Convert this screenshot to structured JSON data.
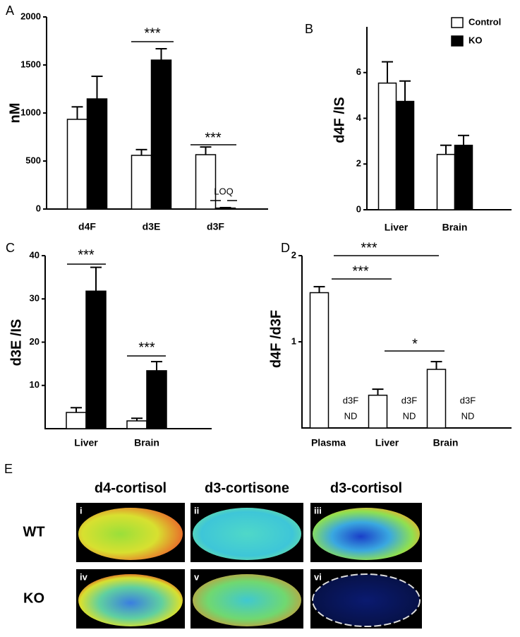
{
  "chart_data": [
    {
      "type": "bar",
      "panel_label": "A",
      "ylabel": "nM",
      "categories": [
        "d4F",
        "d3E",
        "d3F"
      ],
      "series": [
        {
          "color": "#ffffff",
          "values": [
            934,
            559,
            566
          ],
          "errors": [
            130,
            60,
            80
          ]
        },
        {
          "color": "#000000",
          "values": [
            1147,
            1551,
            10
          ],
          "errors": [
            235,
            118,
            5
          ]
        }
      ],
      "ylim": [
        0,
        2000
      ],
      "yticks": [
        0,
        500,
        1000,
        1500,
        2000
      ],
      "annotations": [
        "***",
        "***",
        "LOQ"
      ]
    },
    {
      "type": "bar",
      "panel_label": "B",
      "ylabel": "d4F /IS",
      "categories": [
        "Liver",
        "Brain"
      ],
      "series": [
        {
          "name": "Control",
          "color": "#ffffff",
          "values": [
            5.54,
            2.42
          ],
          "errors": [
            0.93,
            0.4
          ]
        },
        {
          "name": "KO",
          "color": "#000000",
          "values": [
            4.74,
            2.82
          ],
          "errors": [
            0.89,
            0.43
          ]
        }
      ],
      "ylim": [
        0,
        8
      ],
      "yticks": [
        0,
        2,
        4,
        6
      ],
      "legend": "upper right",
      "annotations": []
    },
    {
      "type": "bar",
      "panel_label": "C",
      "ylabel": "d3E /IS",
      "categories": [
        "Liver",
        "Brain"
      ],
      "series": [
        {
          "color": "#ffffff",
          "values": [
            3.75,
            1.8
          ],
          "errors": [
            1.1,
            0.6
          ]
        },
        {
          "color": "#000000",
          "values": [
            31.8,
            13.4
          ],
          "errors": [
            5.5,
            2.1
          ]
        }
      ],
      "ylim": [
        0,
        40
      ],
      "yticks": [
        10,
        20,
        30,
        40
      ],
      "annotations": [
        "***",
        "***"
      ]
    },
    {
      "type": "bar",
      "panel_label": "D",
      "ylabel": "d4F /d3F",
      "categories": [
        "Plasma",
        "Liver",
        "Brain"
      ],
      "series": [
        {
          "color": "#ffffff",
          "values": [
            1.57,
            0.38,
            0.68
          ],
          "errors": [
            0.07,
            0.07,
            0.09
          ]
        }
      ],
      "ylim": [
        0,
        2
      ],
      "yticks": [
        1,
        2
      ],
      "annotations": [
        "***",
        "***",
        "*",
        "d3F",
        "ND",
        "d3F",
        "ND",
        "d3F",
        "ND"
      ]
    }
  ],
  "panel_e": {
    "panel_label": "E",
    "columns": [
      "d4-cortisol",
      "d3-cortisone",
      "d3-cortisol"
    ],
    "rows": [
      "WT",
      "KO"
    ],
    "image_labels": [
      "i",
      "ii",
      "iii",
      "iv",
      "v",
      "vi"
    ]
  }
}
